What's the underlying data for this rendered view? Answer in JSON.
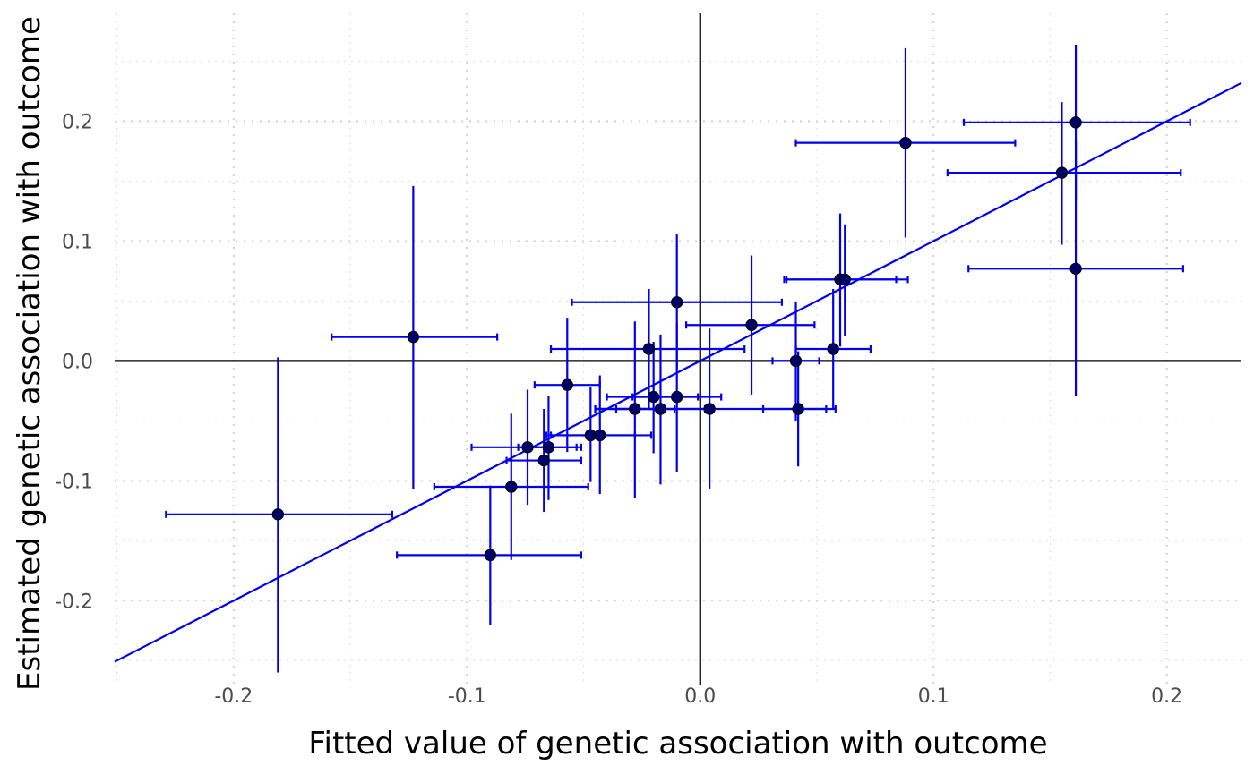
{
  "chart_data": {
    "type": "scatter",
    "title": "",
    "xlabel": "Fitted value of genetic association with outcome",
    "ylabel": "Estimated genetic association with outcome",
    "xlim": [
      -0.251,
      0.232
    ],
    "ylim": [
      -0.27,
      0.29
    ],
    "x_major_ticks": [
      -0.2,
      -0.1,
      0.0,
      0.1,
      0.2
    ],
    "y_major_ticks": [
      -0.2,
      -0.1,
      0.0,
      0.1,
      0.2
    ],
    "x_tick_labels": [
      "-0.2",
      "-0.1",
      "0.0",
      "0.1",
      "0.2"
    ],
    "y_tick_labels": [
      "-0.2",
      "-0.1",
      "0.0",
      "0.1",
      "0.2"
    ],
    "x_minor_ticks": [
      -0.25,
      -0.15,
      -0.05,
      0.05,
      0.15
    ],
    "y_minor_ticks": [
      -0.25,
      -0.15,
      -0.05,
      0.05,
      0.15,
      0.25
    ],
    "grid": true,
    "reference_lines": {
      "x": 0,
      "y": 0
    },
    "fit_line": {
      "slope": 1.0,
      "intercept": 0.0,
      "color": "#0000ee"
    },
    "colors": {
      "points": "#000066",
      "errorbars": "#0000ee",
      "grid": "#d0d0d0",
      "axes": "#000000"
    },
    "points": [
      {
        "x": -0.181,
        "y": -0.128,
        "xlo": -0.229,
        "xhi": -0.132,
        "ylo": -0.26,
        "yhi": 0.003
      },
      {
        "x": -0.123,
        "y": 0.02,
        "xlo": -0.158,
        "xhi": -0.087,
        "ylo": -0.107,
        "yhi": 0.146
      },
      {
        "x": -0.09,
        "y": -0.162,
        "xlo": -0.13,
        "xhi": -0.051,
        "ylo": -0.22,
        "yhi": -0.104
      },
      {
        "x": -0.081,
        "y": -0.105,
        "xlo": -0.114,
        "xhi": -0.048,
        "ylo": -0.166,
        "yhi": -0.044
      },
      {
        "x": -0.074,
        "y": -0.072,
        "xlo": -0.098,
        "xhi": -0.051,
        "ylo": -0.12,
        "yhi": -0.024
      },
      {
        "x": -0.067,
        "y": -0.083,
        "xlo": -0.083,
        "xhi": -0.051,
        "ylo": -0.126,
        "yhi": -0.04
      },
      {
        "x": -0.065,
        "y": -0.072,
        "xlo": -0.078,
        "xhi": -0.053,
        "ylo": -0.116,
        "yhi": -0.029
      },
      {
        "x": -0.057,
        "y": -0.02,
        "xlo": -0.071,
        "xhi": -0.043,
        "ylo": -0.076,
        "yhi": 0.036
      },
      {
        "x": -0.047,
        "y": -0.062,
        "xlo": -0.066,
        "xhi": -0.028,
        "ylo": -0.101,
        "yhi": -0.022
      },
      {
        "x": -0.043,
        "y": -0.062,
        "xlo": -0.064,
        "xhi": -0.021,
        "ylo": -0.111,
        "yhi": -0.012
      },
      {
        "x": -0.028,
        "y": -0.04,
        "xlo": -0.045,
        "xhi": -0.011,
        "ylo": -0.114,
        "yhi": 0.033
      },
      {
        "x": -0.022,
        "y": 0.01,
        "xlo": -0.064,
        "xhi": 0.019,
        "ylo": -0.041,
        "yhi": 0.06
      },
      {
        "x": -0.02,
        "y": -0.03,
        "xlo": -0.04,
        "xhi": -0.001,
        "ylo": -0.077,
        "yhi": 0.016
      },
      {
        "x": -0.017,
        "y": -0.04,
        "xlo": -0.036,
        "xhi": 0.002,
        "ylo": -0.103,
        "yhi": 0.022
      },
      {
        "x": -0.01,
        "y": 0.049,
        "xlo": -0.055,
        "xhi": 0.035,
        "ylo": -0.008,
        "yhi": 0.106
      },
      {
        "x": -0.01,
        "y": -0.03,
        "xlo": -0.029,
        "xhi": 0.009,
        "ylo": -0.093,
        "yhi": 0.032
      },
      {
        "x": 0.004,
        "y": -0.04,
        "xlo": -0.045,
        "xhi": 0.054,
        "ylo": -0.107,
        "yhi": 0.027
      },
      {
        "x": 0.022,
        "y": 0.03,
        "xlo": -0.006,
        "xhi": 0.049,
        "ylo": -0.028,
        "yhi": 0.088
      },
      {
        "x": 0.041,
        "y": 0.0,
        "xlo": 0.031,
        "xhi": 0.051,
        "ylo": -0.05,
        "yhi": 0.049
      },
      {
        "x": 0.042,
        "y": -0.04,
        "xlo": 0.027,
        "xhi": 0.058,
        "ylo": -0.088,
        "yhi": 0.008
      },
      {
        "x": 0.057,
        "y": 0.01,
        "xlo": 0.041,
        "xhi": 0.073,
        "ylo": -0.04,
        "yhi": 0.06
      },
      {
        "x": 0.06,
        "y": 0.068,
        "xlo": 0.036,
        "xhi": 0.084,
        "ylo": 0.012,
        "yhi": 0.123
      },
      {
        "x": 0.062,
        "y": 0.068,
        "xlo": 0.037,
        "xhi": 0.089,
        "ylo": 0.021,
        "yhi": 0.114
      },
      {
        "x": 0.088,
        "y": 0.182,
        "xlo": 0.041,
        "xhi": 0.135,
        "ylo": 0.103,
        "yhi": 0.261
      },
      {
        "x": 0.155,
        "y": 0.157,
        "xlo": 0.106,
        "xhi": 0.206,
        "ylo": 0.097,
        "yhi": 0.216
      },
      {
        "x": 0.161,
        "y": 0.199,
        "xlo": 0.113,
        "xhi": 0.21,
        "ylo": 0.134,
        "yhi": 0.264
      },
      {
        "x": 0.161,
        "y": 0.077,
        "xlo": 0.115,
        "xhi": 0.207,
        "ylo": -0.029,
        "yhi": 0.183
      }
    ]
  }
}
